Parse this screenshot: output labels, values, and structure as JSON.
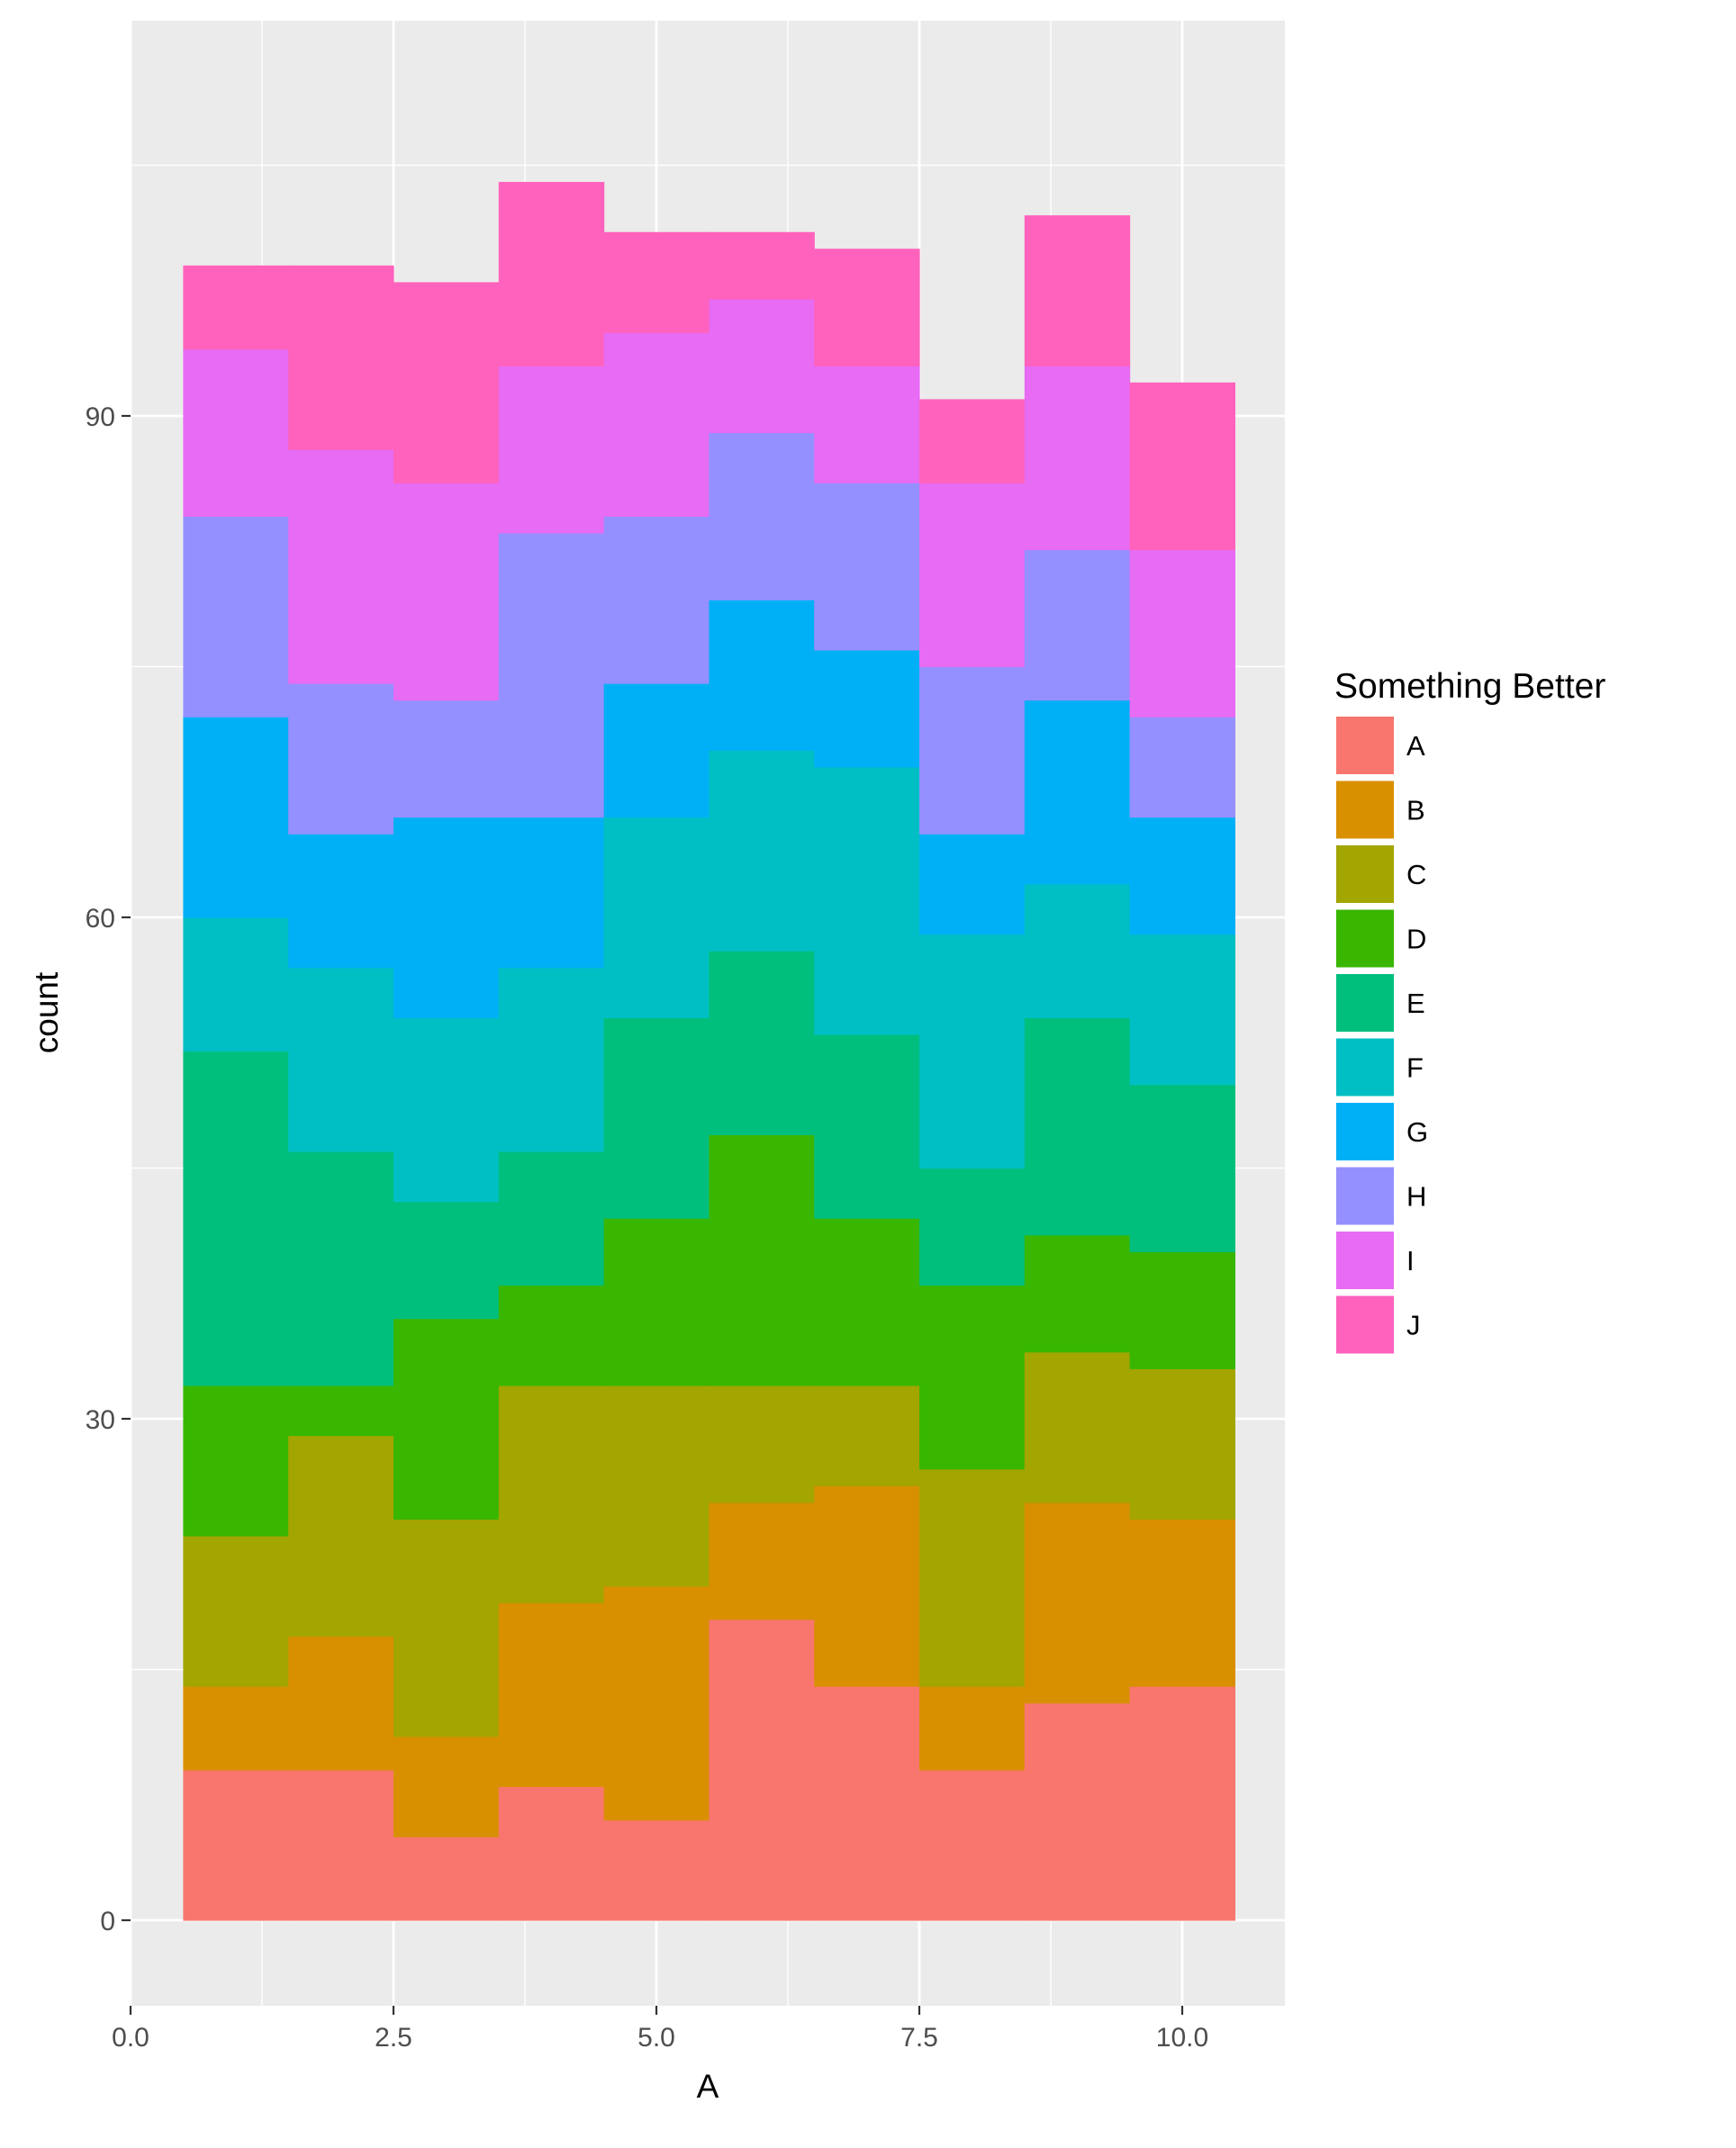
{
  "chart_data": {
    "type": "bar",
    "subtype": "stacked-histogram",
    "title": "",
    "xlabel": "A",
    "ylabel": "count",
    "xlim": [
      0,
      11
    ],
    "ylim": [
      -5,
      113
    ],
    "x_ticks": [
      0,
      2.5,
      5,
      7.5,
      10
    ],
    "x_tick_labels": [
      "0.0",
      "2.5",
      "5.0",
      "7.5",
      "10.0"
    ],
    "y_ticks": [
      0,
      30,
      60,
      90
    ],
    "y_tick_labels": [
      "0",
      "30",
      "60",
      "90"
    ],
    "grid": true,
    "legend_title": "Something Better",
    "legend_position": "right",
    "bins": [
      1,
      2,
      3,
      4,
      5,
      6,
      7,
      8,
      9,
      10
    ],
    "bin_width": 1,
    "series": [
      {
        "name": "A",
        "color": "#F8766D",
        "values": [
          9,
          9,
          5,
          8,
          6,
          18,
          14,
          9,
          13,
          14
        ]
      },
      {
        "name": "B",
        "color": "#D89000",
        "values": [
          5,
          8,
          6,
          11,
          14,
          7,
          12,
          5,
          12,
          10
        ]
      },
      {
        "name": "C",
        "color": "#A3A500",
        "values": [
          9,
          12,
          13,
          13,
          12,
          7,
          6,
          13,
          9,
          9
        ]
      },
      {
        "name": "D",
        "color": "#39B600",
        "values": [
          9,
          3,
          12,
          6,
          10,
          15,
          10,
          11,
          7,
          7
        ]
      },
      {
        "name": "E",
        "color": "#00BF7D",
        "values": [
          20,
          14,
          7,
          8,
          12,
          11,
          11,
          7,
          13,
          10
        ]
      },
      {
        "name": "F",
        "color": "#00BFC4",
        "values": [
          8,
          11,
          11,
          11,
          12,
          12,
          16,
          14,
          8,
          9
        ]
      },
      {
        "name": "G",
        "color": "#00B0F6",
        "values": [
          12,
          8,
          12,
          9,
          8,
          9,
          7,
          6,
          11,
          7
        ]
      },
      {
        "name": "H",
        "color": "#9590FF",
        "values": [
          12,
          9,
          7,
          17,
          10,
          10,
          10,
          10,
          9,
          6
        ]
      },
      {
        "name": "I",
        "color": "#E76BF3",
        "values": [
          10,
          14,
          13,
          10,
          11,
          8,
          7,
          11,
          11,
          10
        ]
      },
      {
        "name": "J",
        "color": "#FF62BC",
        "values": [
          5,
          11,
          12,
          11,
          6,
          4,
          7,
          5,
          9,
          10
        ]
      }
    ]
  }
}
